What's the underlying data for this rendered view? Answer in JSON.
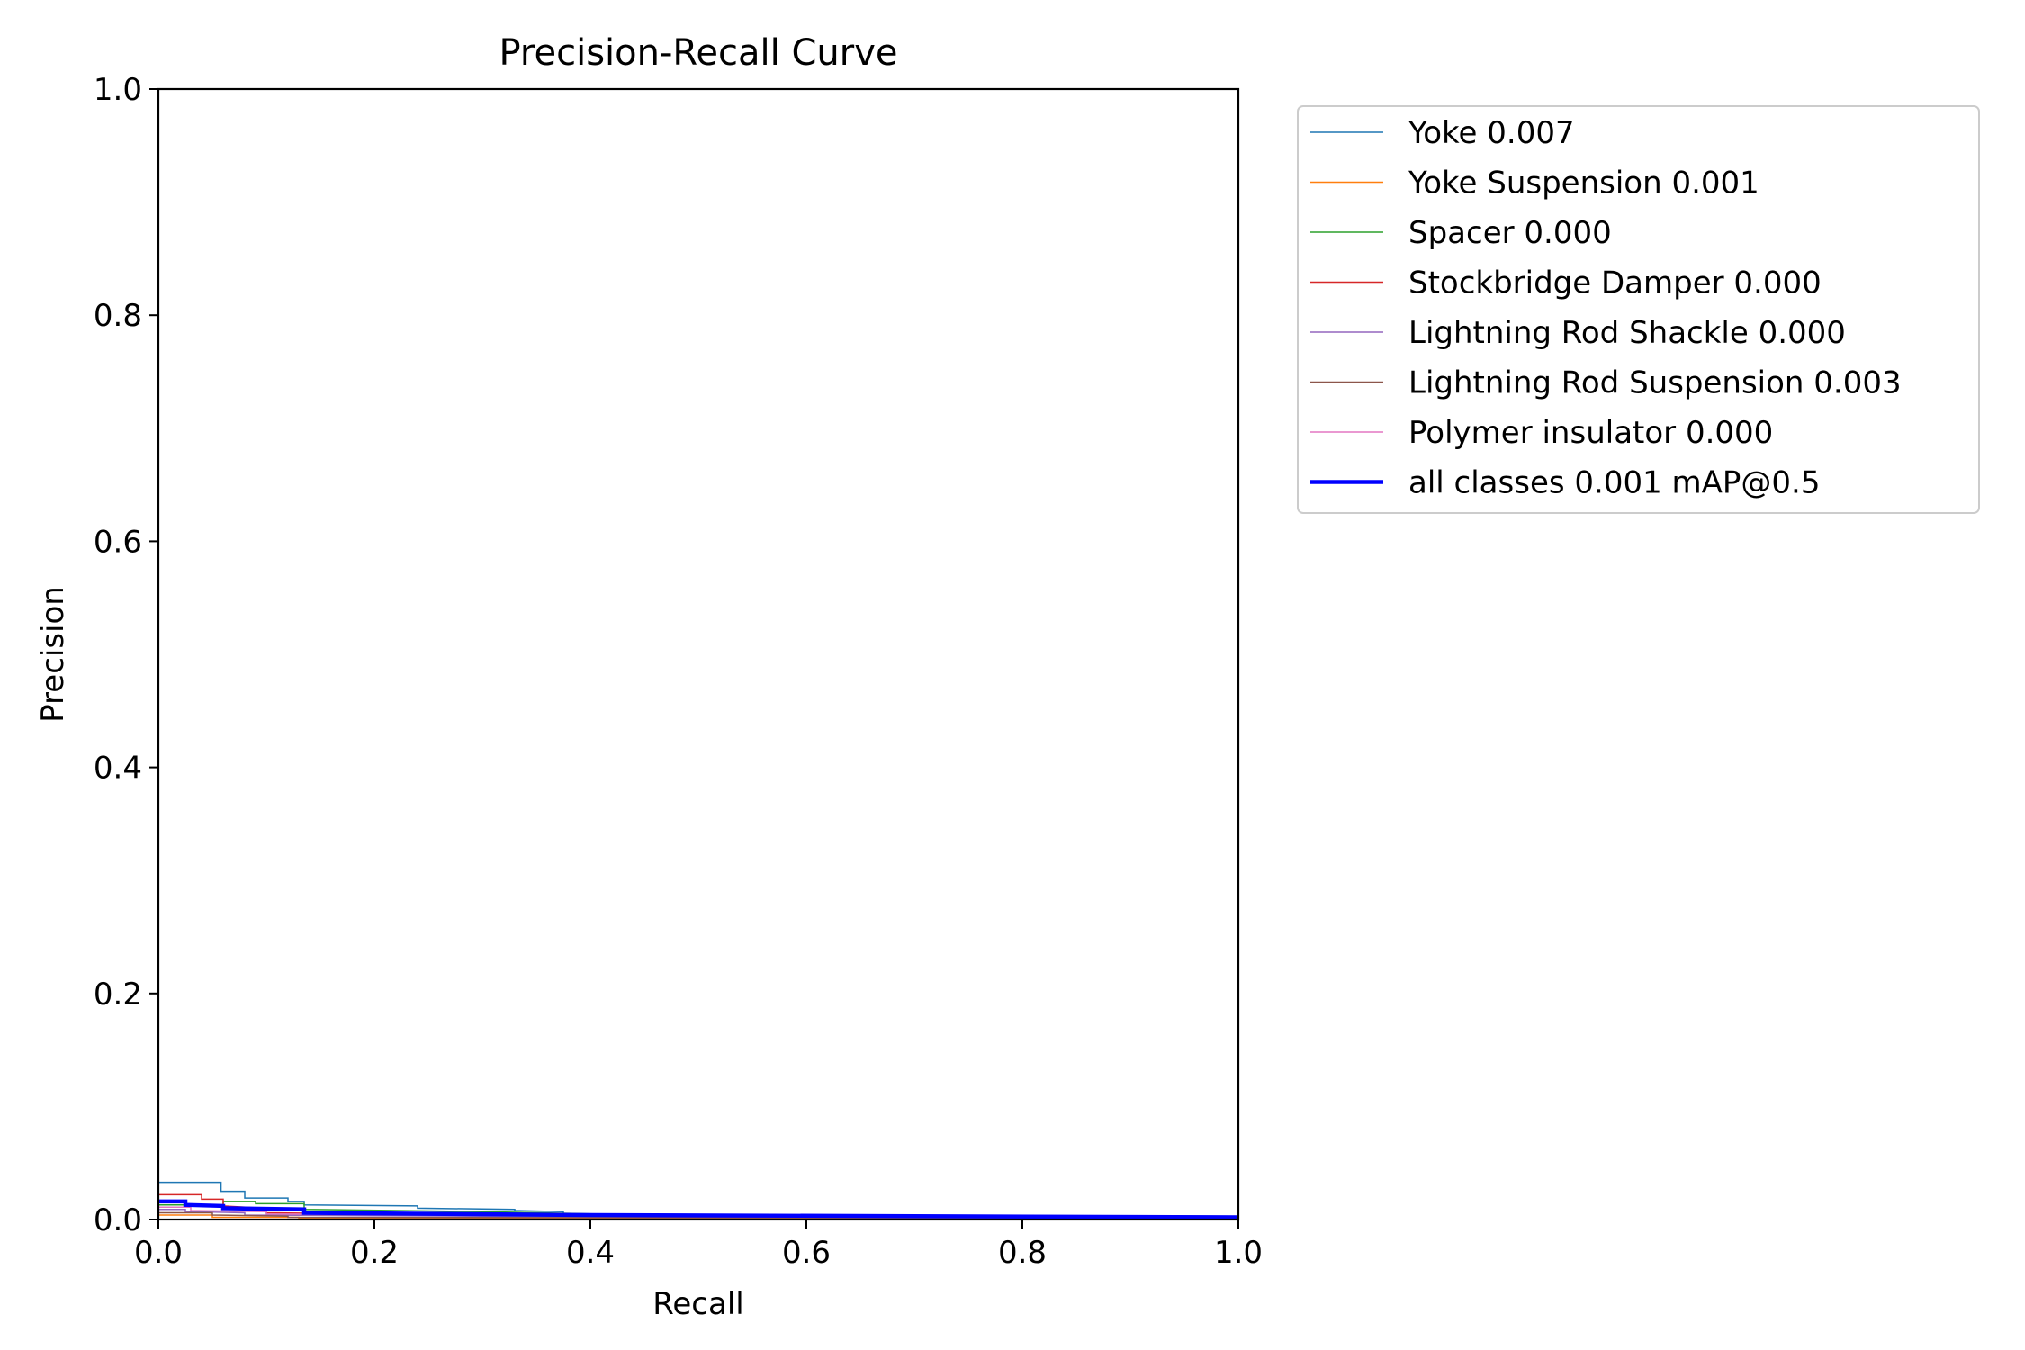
{
  "chart_data": {
    "type": "line",
    "title": "Precision-Recall Curve",
    "xlabel": "Recall",
    "ylabel": "Precision",
    "xlim": [
      0,
      1
    ],
    "ylim": [
      0,
      1
    ],
    "xticks": [
      "0.0",
      "0.2",
      "0.4",
      "0.6",
      "0.8",
      "1.0"
    ],
    "yticks": [
      "0.0",
      "0.2",
      "0.4",
      "0.6",
      "0.8",
      "1.0"
    ],
    "grid": false,
    "legend_position": "outside-upper-right",
    "series": [
      {
        "name": "Yoke 0.007",
        "color": "#1f77b4",
        "width": 1.5,
        "points": [
          [
            0,
            0.033
          ],
          [
            0.058,
            0.033
          ],
          [
            0.058,
            0.025
          ],
          [
            0.08,
            0.025
          ],
          [
            0.08,
            0.019
          ],
          [
            0.12,
            0.019
          ],
          [
            0.12,
            0.016
          ],
          [
            0.135,
            0.016
          ],
          [
            0.135,
            0.013
          ],
          [
            0.24,
            0.012
          ],
          [
            0.24,
            0.01
          ],
          [
            0.33,
            0.009
          ],
          [
            0.33,
            0.008
          ],
          [
            0.375,
            0.007
          ],
          [
            0.375,
            0.005
          ],
          [
            0.6,
            0.004
          ],
          [
            1,
            0.003
          ]
        ]
      },
      {
        "name": "Yoke Suspension 0.001",
        "color": "#ff7f0e",
        "width": 1.5,
        "points": [
          [
            0,
            0.004
          ],
          [
            0.05,
            0.004
          ],
          [
            0.05,
            0.002
          ],
          [
            0.13,
            0.002
          ],
          [
            0.13,
            0.001
          ],
          [
            1,
            0.0005
          ]
        ]
      },
      {
        "name": "Spacer 0.000",
        "color": "#2ca02c",
        "width": 1.5,
        "points": [
          [
            0,
            0.013
          ],
          [
            0.06,
            0.013
          ],
          [
            0.06,
            0.016
          ],
          [
            0.09,
            0.016
          ],
          [
            0.09,
            0.014
          ],
          [
            0.135,
            0.014
          ],
          [
            0.135,
            0.009
          ],
          [
            0.3,
            0.007
          ],
          [
            0.45,
            0.004
          ],
          [
            1,
            0.002
          ]
        ]
      },
      {
        "name": "Stockbridge Damper 0.000",
        "color": "#d62728",
        "width": 1.5,
        "points": [
          [
            0,
            0.022
          ],
          [
            0.04,
            0.022
          ],
          [
            0.04,
            0.018
          ],
          [
            0.06,
            0.018
          ],
          [
            0.06,
            0.012
          ],
          [
            0.1,
            0.01
          ],
          [
            0.1,
            0.006
          ],
          [
            0.3,
            0.004
          ],
          [
            1,
            0.002
          ]
        ]
      },
      {
        "name": "Lightning Rod Shackle 0.000",
        "color": "#9467bd",
        "width": 1.5,
        "points": [
          [
            0,
            0.009
          ],
          [
            0.025,
            0.009
          ],
          [
            0.025,
            0.007
          ],
          [
            0.08,
            0.006
          ],
          [
            0.08,
            0.004
          ],
          [
            0.3,
            0.003
          ],
          [
            1,
            0.002
          ]
        ]
      },
      {
        "name": "Lightning Rod Suspension 0.003",
        "color": "#8c564b",
        "width": 1.5,
        "points": [
          [
            0,
            0.006
          ],
          [
            0.05,
            0.006
          ],
          [
            0.05,
            0.004
          ],
          [
            0.12,
            0.003
          ],
          [
            0.12,
            0.002
          ],
          [
            1,
            0.001
          ]
        ]
      },
      {
        "name": "Polymer insulator 0.000",
        "color": "#e377c2",
        "width": 1.5,
        "points": [
          [
            0,
            0.011
          ],
          [
            0.03,
            0.011
          ],
          [
            0.03,
            0.008
          ],
          [
            0.1,
            0.007
          ],
          [
            0.1,
            0.005
          ],
          [
            0.35,
            0.004
          ],
          [
            1,
            0.002
          ]
        ]
      },
      {
        "name": "all classes 0.001 mAP@0.5",
        "color": "#0000ff",
        "width": 4.5,
        "points": [
          [
            0,
            0.016
          ],
          [
            0.025,
            0.016
          ],
          [
            0.025,
            0.013
          ],
          [
            0.06,
            0.012
          ],
          [
            0.06,
            0.01
          ],
          [
            0.135,
            0.009
          ],
          [
            0.135,
            0.006
          ],
          [
            0.4,
            0.004
          ],
          [
            1,
            0.002
          ]
        ]
      }
    ]
  }
}
